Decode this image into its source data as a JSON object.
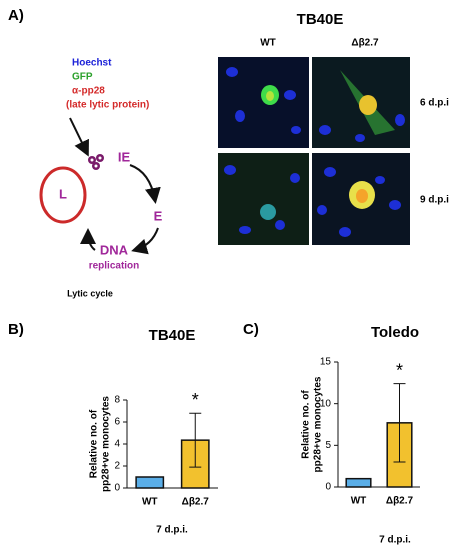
{
  "panel_a": {
    "label": "A)",
    "title": "TB40E",
    "columns": [
      "WT",
      "Δβ2.7"
    ],
    "rows": [
      "6 d.p.i",
      "9 d.p.i"
    ],
    "legend": [
      "Hoechst",
      "GFP",
      "α-pp28",
      "(late lytic protein)"
    ],
    "cycle": {
      "nodes": [
        "IE",
        "E",
        "DNA",
        "replication",
        "L"
      ],
      "caption": "Lytic cycle"
    }
  },
  "chart_data": [
    {
      "type": "bar",
      "panel_label": "B)",
      "title": "TB40E",
      "y_label": [
        "Relative no. of",
        "pp28+ve monocytes"
      ],
      "x_label": "7 d.p.i.",
      "categories": [
        "WT",
        "Δβ2.7"
      ],
      "values": [
        1,
        4.35
      ],
      "errors": [
        null,
        2.45
      ],
      "colors": [
        "#5aaee8",
        "#f2c12e"
      ],
      "annotation": "*",
      "ylim": [
        0,
        8
      ],
      "yticks": [
        0,
        2,
        4,
        6,
        8
      ]
    },
    {
      "type": "bar",
      "panel_label": "C)",
      "title": "Toledo",
      "y_label": [
        "Relative no. of",
        "pp28+ve monocytes"
      ],
      "x_label": "7 d.p.i.",
      "categories": [
        "WT",
        "Δβ2.7"
      ],
      "values": [
        1,
        7.7
      ],
      "errors": [
        null,
        4.7
      ],
      "colors": [
        "#5aaee8",
        "#f2c12e"
      ],
      "annotation": "*",
      "ylim": [
        0,
        15
      ],
      "yticks": [
        0,
        5,
        10,
        15
      ]
    }
  ]
}
